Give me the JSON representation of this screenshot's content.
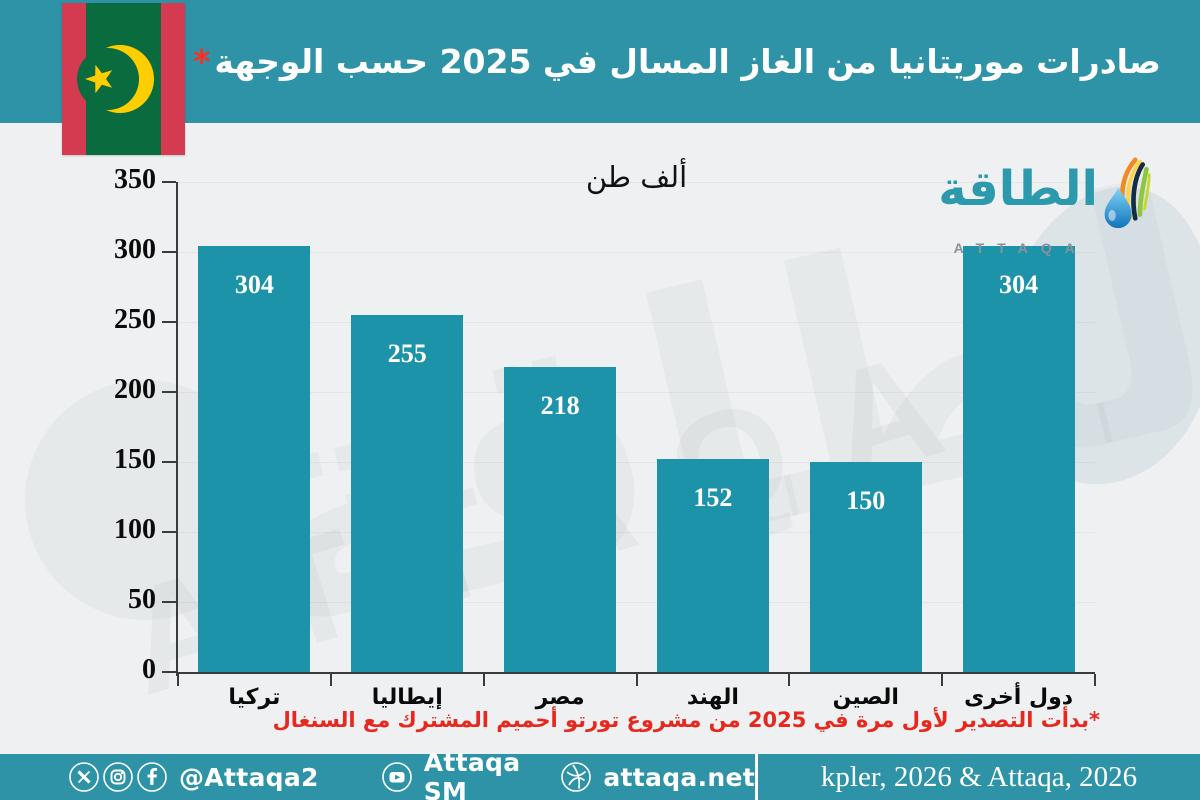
{
  "header": {
    "title": "صادرات موريتانيا من الغاز المسال في 2025 حسب الوجهة",
    "footnote_marker": "*"
  },
  "logo": {
    "arabic": "الطاقة",
    "latin": "ATTAQA"
  },
  "chart_data": {
    "type": "bar",
    "title": "صادرات موريتانيا من الغاز المسال في 2025 حسب الوجهة*",
    "unit_label": "ألف طن",
    "categories": [
      "تركيا",
      "إيطاليا",
      "مصر",
      "الهند",
      "الصين",
      "دول أخرى"
    ],
    "values": [
      304,
      255,
      218,
      152,
      150,
      304
    ],
    "xlabel": "",
    "ylabel": "",
    "ylim": [
      0,
      350
    ],
    "yticks": [
      0,
      50,
      100,
      150,
      200,
      250,
      300,
      350
    ],
    "grid": "faint horizontal gridlines",
    "legend": "none",
    "bar_color": "#1C93A9",
    "value_label_color": "#FFFFFF"
  },
  "footnote": "*بدأت التصدير لأول مرة في 2025 من مشروع تورتو أحميم المشترك مع السنغال",
  "footer": {
    "social_handle": "@Attaqa2",
    "youtube_label": "Attaqa SM",
    "website": "attaqa.net",
    "source": "kpler, 2026 & Attaqa, 2026"
  },
  "colors": {
    "header_teal": "#2E93A6",
    "bar_teal": "#1C93A9",
    "background": "#EEF0F1",
    "accent_red": "#E6281E",
    "axis": "#3B3B3B",
    "flag_green": "#0A6B3E",
    "flag_red": "#D43A50",
    "flag_gold": "#FFCE00",
    "logo_teal": "#2C99AD",
    "logo_gray": "#8A9299"
  }
}
